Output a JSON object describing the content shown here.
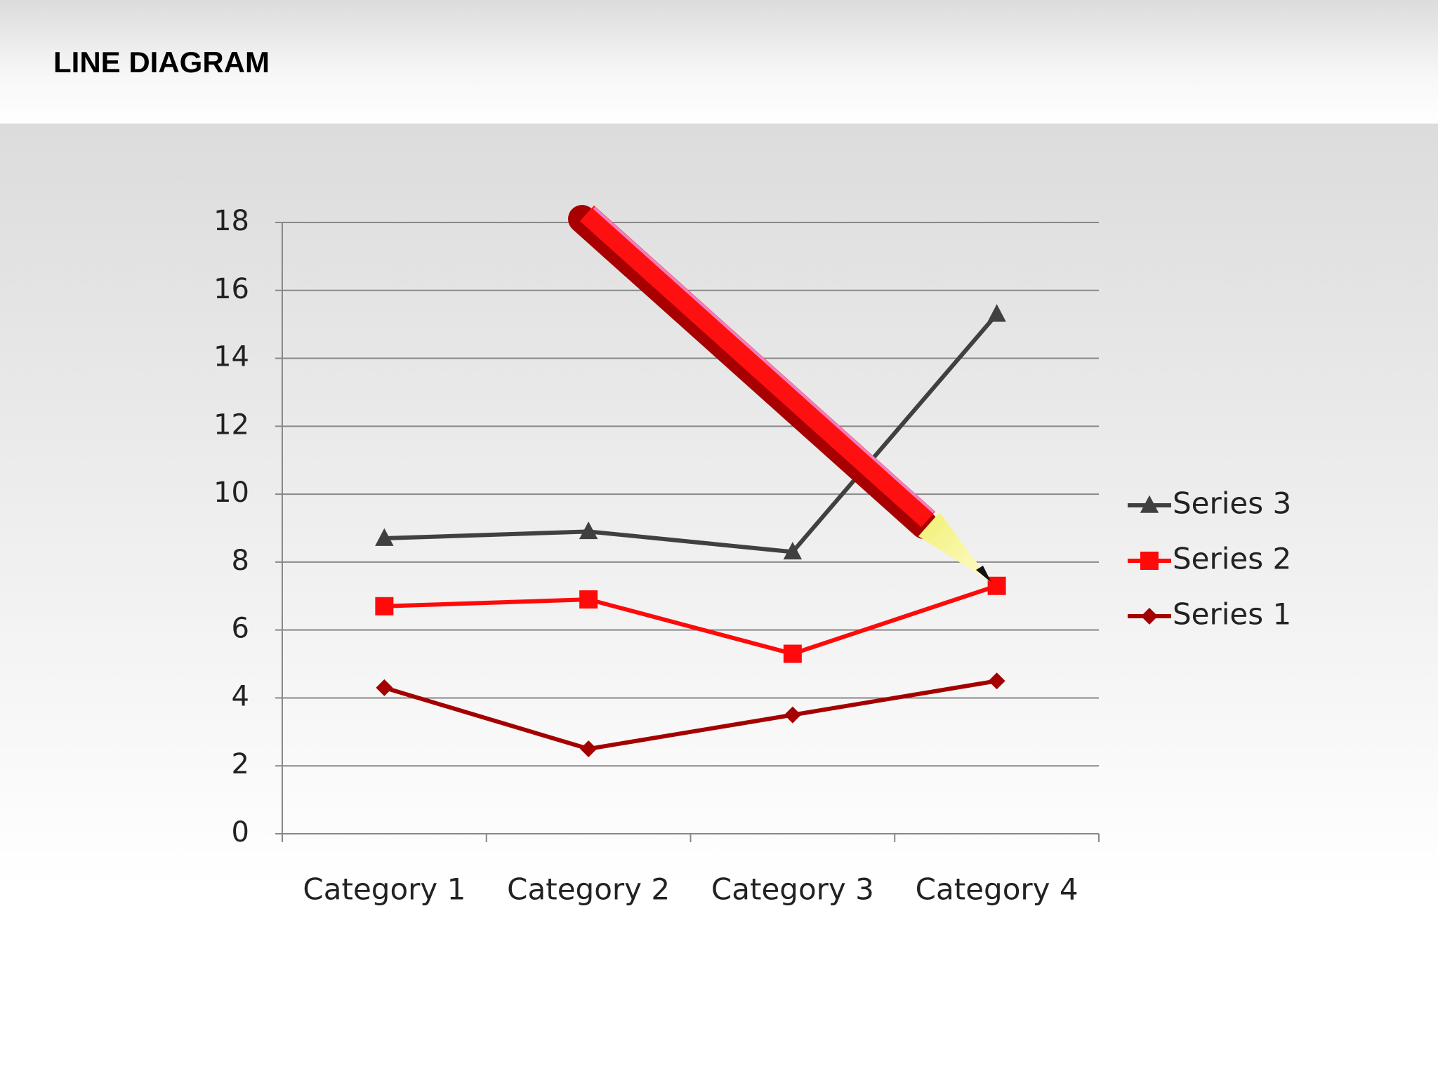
{
  "chart_data": {
    "type": "line",
    "title": "LINE DIAGRAM",
    "categories": [
      "Category 1",
      "Category 2",
      "Category 3",
      "Category 4"
    ],
    "series": [
      {
        "name": "Series 1",
        "color": "#a50000",
        "marker": "diamond",
        "values": [
          4.3,
          2.5,
          3.5,
          4.5
        ]
      },
      {
        "name": "Series 2",
        "color": "#ff0a0a",
        "marker": "square",
        "values": [
          6.7,
          6.9,
          5.3,
          7.3
        ]
      },
      {
        "name": "Series 3",
        "color": "#404040",
        "marker": "triangle",
        "values": [
          8.7,
          8.9,
          8.3,
          15.3
        ]
      }
    ],
    "ylim": [
      0,
      18
    ],
    "yticks": [
      0,
      2,
      4,
      6,
      8,
      10,
      12,
      14,
      16,
      18
    ],
    "grid": true,
    "legend": "right"
  }
}
